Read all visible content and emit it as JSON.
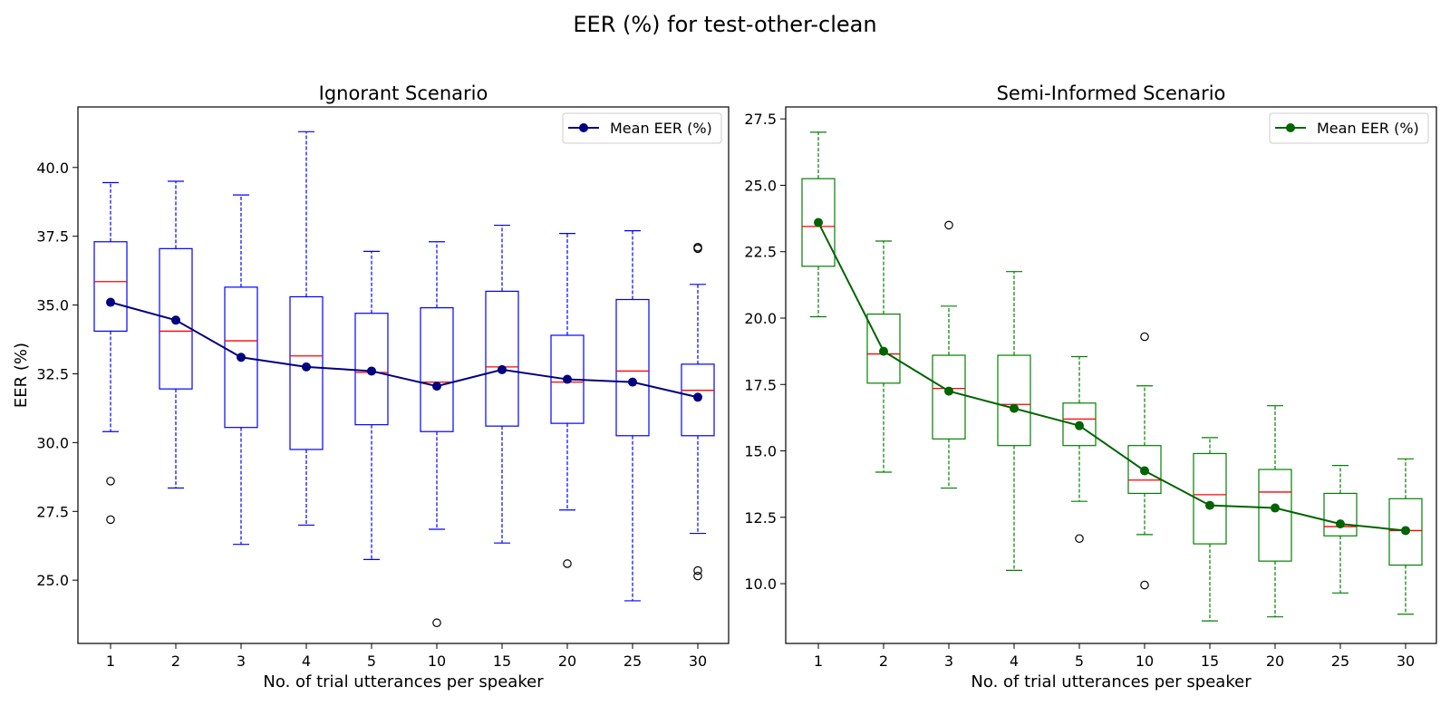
{
  "figure": {
    "title": "EER (%) for test-other-clean"
  },
  "chart_data": [
    {
      "type": "box",
      "title": "Ignorant Scenario",
      "xlabel": "No. of trial utterances per speaker",
      "ylabel": "EER (%)",
      "ylim": [
        22.7,
        42.2
      ],
      "yticks": [
        "25.0",
        "27.5",
        "30.0",
        "32.5",
        "35.0",
        "37.5",
        "40.0"
      ],
      "categories": [
        "1",
        "2",
        "3",
        "4",
        "5",
        "10",
        "15",
        "20",
        "25",
        "30"
      ],
      "legend": {
        "label": "Mean EER (%)",
        "position": "upper right"
      },
      "colors": {
        "box": "#0000ff",
        "median": "#ff0000",
        "mean": "#000080"
      },
      "boxes": [
        {
          "whislo": 30.4,
          "q1": 34.05,
          "med": 35.85,
          "q3": 37.3,
          "whishi": 39.45,
          "fliers": [
            28.6,
            27.2
          ]
        },
        {
          "whislo": 28.35,
          "q1": 31.95,
          "med": 34.05,
          "q3": 37.05,
          "whishi": 39.5,
          "fliers": []
        },
        {
          "whislo": 26.3,
          "q1": 30.55,
          "med": 33.7,
          "q3": 35.65,
          "whishi": 39.0,
          "fliers": []
        },
        {
          "whislo": 27.0,
          "q1": 29.75,
          "med": 33.15,
          "q3": 35.3,
          "whishi": 41.3,
          "fliers": []
        },
        {
          "whislo": 25.75,
          "q1": 30.65,
          "med": 32.55,
          "q3": 34.7,
          "whishi": 36.95,
          "fliers": []
        },
        {
          "whislo": 26.85,
          "q1": 30.4,
          "med": 32.2,
          "q3": 34.9,
          "whishi": 37.3,
          "fliers": [
            23.45
          ]
        },
        {
          "whislo": 26.35,
          "q1": 30.6,
          "med": 32.75,
          "q3": 35.5,
          "whishi": 37.9,
          "fliers": []
        },
        {
          "whislo": 27.55,
          "q1": 30.7,
          "med": 32.2,
          "q3": 33.9,
          "whishi": 37.6,
          "fliers": [
            25.6
          ]
        },
        {
          "whislo": 24.25,
          "q1": 30.25,
          "med": 32.6,
          "q3": 35.2,
          "whishi": 37.7,
          "fliers": []
        },
        {
          "whislo": 26.7,
          "q1": 30.25,
          "med": 31.9,
          "q3": 32.85,
          "whishi": 35.75,
          "fliers": [
            37.05,
            37.1,
            25.35,
            25.15
          ]
        }
      ],
      "series": [
        {
          "name": "Mean EER (%)",
          "values": [
            35.1,
            34.45,
            33.1,
            32.75,
            32.6,
            32.05,
            32.65,
            32.3,
            32.2,
            31.65
          ]
        }
      ]
    },
    {
      "type": "box",
      "title": "Semi-Informed Scenario",
      "xlabel": "No. of trial utterances per speaker",
      "ylabel": "",
      "ylim": [
        7.75,
        27.95
      ],
      "yticks": [
        "10.0",
        "12.5",
        "15.0",
        "17.5",
        "20.0",
        "22.5",
        "25.0",
        "27.5"
      ],
      "categories": [
        "1",
        "2",
        "3",
        "4",
        "5",
        "10",
        "15",
        "20",
        "25",
        "30"
      ],
      "legend": {
        "label": "Mean EER (%)",
        "position": "upper right"
      },
      "colors": {
        "box": "#008000",
        "median": "#ff0000",
        "mean": "#006400"
      },
      "boxes": [
        {
          "whislo": 20.05,
          "q1": 21.95,
          "med": 23.45,
          "q3": 25.25,
          "whishi": 27.0,
          "fliers": []
        },
        {
          "whislo": 14.2,
          "q1": 17.55,
          "med": 18.65,
          "q3": 20.15,
          "whishi": 22.9,
          "fliers": []
        },
        {
          "whislo": 13.6,
          "q1": 15.45,
          "med": 17.35,
          "q3": 18.6,
          "whishi": 20.45,
          "fliers": [
            23.5
          ]
        },
        {
          "whislo": 10.5,
          "q1": 15.2,
          "med": 16.75,
          "q3": 18.6,
          "whishi": 21.75,
          "fliers": []
        },
        {
          "whislo": 13.1,
          "q1": 15.2,
          "med": 16.2,
          "q3": 16.8,
          "whishi": 18.55,
          "fliers": [
            11.7
          ]
        },
        {
          "whislo": 11.85,
          "q1": 13.4,
          "med": 13.9,
          "q3": 15.2,
          "whishi": 17.45,
          "fliers": [
            19.3,
            9.95
          ]
        },
        {
          "whislo": 8.6,
          "q1": 11.5,
          "med": 13.35,
          "q3": 14.9,
          "whishi": 15.5,
          "fliers": []
        },
        {
          "whislo": 8.75,
          "q1": 10.85,
          "med": 13.45,
          "q3": 14.3,
          "whishi": 16.7,
          "fliers": []
        },
        {
          "whislo": 9.65,
          "q1": 11.8,
          "med": 12.15,
          "q3": 13.4,
          "whishi": 14.45,
          "fliers": []
        },
        {
          "whislo": 8.85,
          "q1": 10.7,
          "med": 12.0,
          "q3": 13.2,
          "whishi": 14.7,
          "fliers": []
        }
      ],
      "series": [
        {
          "name": "Mean EER (%)",
          "values": [
            23.6,
            18.75,
            17.25,
            16.6,
            15.95,
            14.25,
            12.95,
            12.85,
            12.25,
            12.0
          ]
        }
      ]
    }
  ]
}
